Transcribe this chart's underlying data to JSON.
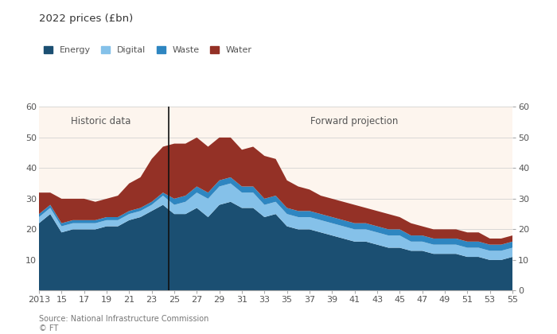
{
  "title": "2022 prices (£bn)",
  "source": "Source: National Infrastructure Commission\n© FT",
  "years": [
    2013,
    2014,
    2015,
    2016,
    2017,
    2018,
    2019,
    2020,
    2021,
    2022,
    2023,
    2024,
    2025,
    2026,
    2027,
    2028,
    2029,
    2030,
    2031,
    2032,
    2033,
    2034,
    2035,
    2036,
    2037,
    2038,
    2039,
    2040,
    2041,
    2042,
    2043,
    2044,
    2045,
    2046,
    2047,
    2048,
    2049,
    2050,
    2051,
    2052,
    2053,
    2054,
    2055
  ],
  "energy": [
    22,
    25,
    19,
    20,
    20,
    20,
    21,
    21,
    23,
    24,
    26,
    28,
    25,
    25,
    27,
    24,
    28,
    29,
    27,
    27,
    24,
    25,
    21,
    20,
    20,
    19,
    18,
    17,
    16,
    16,
    15,
    14,
    14,
    13,
    13,
    12,
    12,
    12,
    11,
    11,
    10,
    10,
    11
  ],
  "digital": [
    2,
    2,
    2,
    2,
    2,
    2,
    2,
    2,
    2,
    2,
    2,
    3,
    3,
    4,
    5,
    6,
    6,
    6,
    5,
    5,
    4,
    4,
    4,
    4,
    4,
    4,
    4,
    4,
    4,
    4,
    4,
    4,
    4,
    3,
    3,
    3,
    3,
    3,
    3,
    3,
    3,
    3,
    3
  ],
  "waste": [
    1,
    1,
    1,
    1,
    1,
    1,
    1,
    1,
    1,
    1,
    1,
    1,
    2,
    2,
    2,
    2,
    2,
    2,
    2,
    2,
    2,
    2,
    2,
    2,
    2,
    2,
    2,
    2,
    2,
    2,
    2,
    2,
    2,
    2,
    2,
    2,
    2,
    2,
    2,
    2,
    2,
    2,
    2
  ],
  "water": [
    7,
    4,
    8,
    7,
    7,
    6,
    6,
    7,
    9,
    10,
    14,
    15,
    18,
    17,
    16,
    15,
    14,
    13,
    12,
    13,
    14,
    12,
    9,
    8,
    7,
    6,
    6,
    6,
    6,
    5,
    5,
    5,
    4,
    4,
    3,
    3,
    3,
    3,
    3,
    3,
    2,
    2,
    2
  ],
  "colors": {
    "energy": "#1b4f72",
    "digital": "#85c1e9",
    "waste": "#2e86c1",
    "water": "#943126"
  },
  "divider_year": 2024.5,
  "background_color": "#fdf5ee",
  "historic_label": "Historic data",
  "projection_label": "Forward projection",
  "ylim": [
    0,
    60
  ],
  "yticks": [
    0,
    10,
    20,
    30,
    40,
    50,
    60
  ],
  "xtick_labels": [
    "2013",
    "15",
    "17",
    "19",
    "21",
    "23",
    "25",
    "27",
    "29",
    "31",
    "33",
    "35",
    "37",
    "39",
    "41",
    "43",
    "45",
    "47",
    "49",
    "51",
    "53",
    "55"
  ],
  "xtick_years": [
    2013,
    2015,
    2017,
    2019,
    2021,
    2023,
    2025,
    2027,
    2029,
    2031,
    2033,
    2035,
    2037,
    2039,
    2041,
    2043,
    2045,
    2047,
    2049,
    2051,
    2053,
    2055
  ]
}
